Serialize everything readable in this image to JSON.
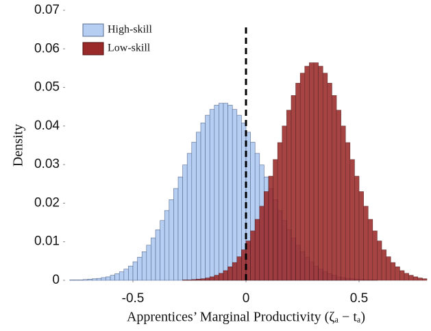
{
  "chart_data": {
    "type": "histogram",
    "xlabel": "Apprentices’ Marginal Productivity (ζₐ − tₐ)",
    "ylabel": "Density",
    "xlim": [
      -0.8,
      0.8
    ],
    "ylim": [
      0,
      0.07
    ],
    "xticks": [
      -0.5,
      0,
      0.5
    ],
    "yticks": [
      0,
      0.01,
      0.02,
      0.03,
      0.04,
      0.05,
      0.06,
      0.07
    ],
    "legend": "upper left",
    "reference_line": {
      "x": 0,
      "top": 0.066,
      "color": "#000000"
    },
    "bins": [
      -0.8,
      -0.78,
      -0.76,
      -0.74,
      -0.72,
      -0.7,
      -0.68,
      -0.66,
      -0.64,
      -0.62,
      -0.6,
      -0.58,
      -0.56,
      -0.54,
      -0.52,
      -0.5,
      -0.48,
      -0.46,
      -0.44,
      -0.42,
      -0.4,
      -0.38,
      -0.36,
      -0.34,
      -0.32,
      -0.3,
      -0.28,
      -0.26,
      -0.24,
      -0.22,
      -0.2,
      -0.18,
      -0.16,
      -0.14,
      -0.12,
      -0.1,
      -0.08,
      -0.06,
      -0.04,
      -0.02,
      0,
      0.02,
      0.04,
      0.06,
      0.08,
      0.1,
      0.12,
      0.14,
      0.16,
      0.18,
      0.2,
      0.22,
      0.24,
      0.26,
      0.28,
      0.3,
      0.32,
      0.34,
      0.36,
      0.38,
      0.4,
      0.42,
      0.44,
      0.46,
      0.48,
      0.5,
      0.52,
      0.54,
      0.56,
      0.58,
      0.6,
      0.62,
      0.64,
      0.66,
      0.68,
      0.7,
      0.72,
      0.74,
      0.76,
      0.78,
      0.8
    ],
    "series": [
      {
        "name": "High-skill",
        "color": "#b5cef2",
        "edge": "#56698f",
        "opacity": 1,
        "values": [
          0,
          0.0001,
          0.0001,
          0.0001,
          0.0002,
          0.0003,
          0.0004,
          0.0005,
          0.0007,
          0.0009,
          0.0013,
          0.0017,
          0.0022,
          0.0029,
          0.0037,
          0.0048,
          0.006,
          0.0074,
          0.0091,
          0.011,
          0.0131,
          0.0155,
          0.0181,
          0.0209,
          0.0238,
          0.0268,
          0.0299,
          0.0329,
          0.0358,
          0.0384,
          0.0408,
          0.0428,
          0.0443,
          0.0454,
          0.0459,
          0.0459,
          0.0454,
          0.0443,
          0.0428,
          0.0408,
          0.0384,
          0.0358,
          0.0329,
          0.0299,
          0.0268,
          0.0238,
          0.0209,
          0.0181,
          0.0155,
          0.0131,
          0.011,
          0.0091,
          0.0074,
          0.006,
          0.0048,
          0.0037,
          0.0029,
          0.0022,
          0.0017,
          0.0013,
          0.0009,
          0.0007,
          0.0005,
          0.0004,
          0.0003,
          0.0002,
          0.0001,
          0.0001,
          0.0001,
          0,
          0,
          0,
          0,
          0,
          0,
          0,
          0,
          0,
          0,
          0
        ]
      },
      {
        "name": "Low-skill",
        "color": "#9a2a2a",
        "edge": "#4f0d0d",
        "opacity": 0.88,
        "values": [
          0,
          0,
          0,
          0,
          0,
          0,
          0,
          0,
          0,
          0,
          0,
          0,
          0,
          0,
          0,
          0,
          0,
          0,
          0,
          0,
          0,
          0,
          0,
          0,
          0,
          0,
          0.0001,
          0.0001,
          0.0002,
          0.0003,
          0.0004,
          0.0006,
          0.0009,
          0.0013,
          0.0018,
          0.0025,
          0.0035,
          0.0046,
          0.0061,
          0.0079,
          0.0102,
          0.0128,
          0.0158,
          0.0192,
          0.023,
          0.027,
          0.0313,
          0.0357,
          0.04,
          0.0441,
          0.0479,
          0.0511,
          0.0537,
          0.0555,
          0.0564,
          0.0564,
          0.0555,
          0.0537,
          0.0511,
          0.0479,
          0.0441,
          0.04,
          0.0357,
          0.0313,
          0.027,
          0.023,
          0.0192,
          0.0158,
          0.0128,
          0.0102,
          0.0079,
          0.0061,
          0.0046,
          0.0035,
          0.0025,
          0.0018,
          0.0013,
          0.0009,
          0.0006,
          0.0004
        ]
      }
    ]
  }
}
